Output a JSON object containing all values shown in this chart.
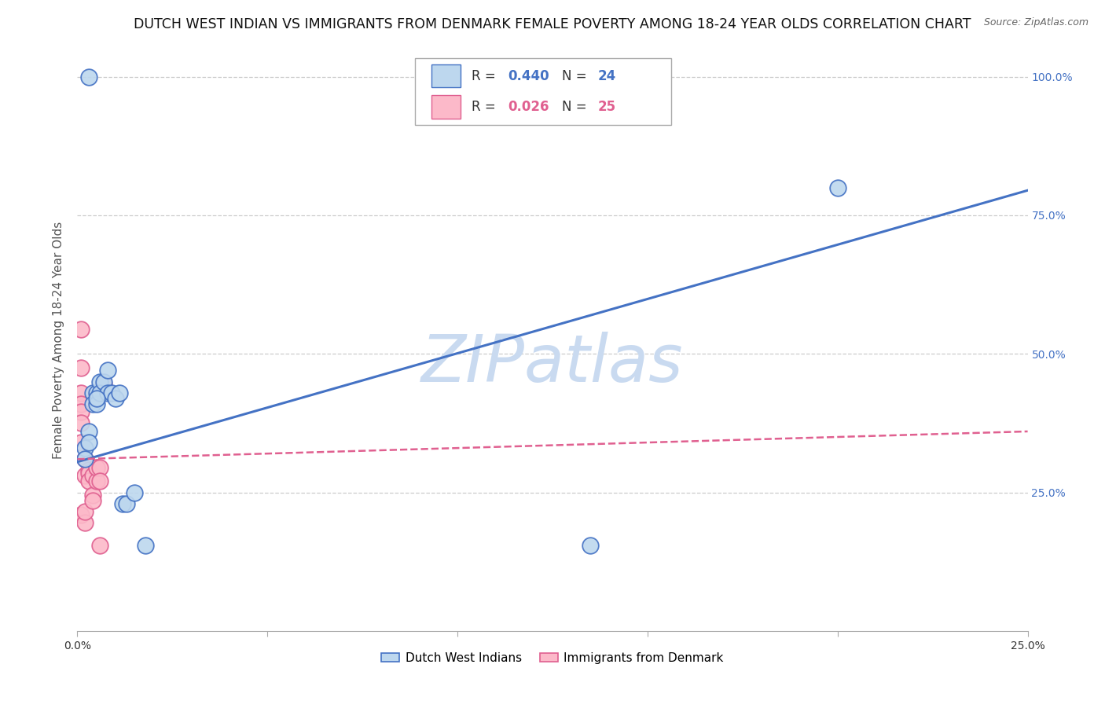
{
  "title": "DUTCH WEST INDIAN VS IMMIGRANTS FROM DENMARK FEMALE POVERTY AMONG 18-24 YEAR OLDS CORRELATION CHART",
  "source": "Source: ZipAtlas.com",
  "ylabel": "Female Poverty Among 18-24 Year Olds",
  "xlim": [
    0.0,
    0.25
  ],
  "ylim": [
    0.0,
    1.05
  ],
  "blue_R": 0.44,
  "blue_N": 24,
  "pink_R": 0.026,
  "pink_N": 25,
  "blue_scatter_x": [
    0.002,
    0.002,
    0.003,
    0.003,
    0.004,
    0.004,
    0.005,
    0.005,
    0.006,
    0.006,
    0.007,
    0.008,
    0.008,
    0.009,
    0.01,
    0.011,
    0.012,
    0.013,
    0.015,
    0.018,
    0.135,
    0.2,
    0.003,
    0.005
  ],
  "blue_scatter_y": [
    0.33,
    0.31,
    0.36,
    0.34,
    0.43,
    0.41,
    0.43,
    0.41,
    0.45,
    0.43,
    0.45,
    0.47,
    0.43,
    0.43,
    0.42,
    0.43,
    0.23,
    0.23,
    0.25,
    0.155,
    0.155,
    0.8,
    1.0,
    0.42
  ],
  "pink_scatter_x": [
    0.001,
    0.001,
    0.001,
    0.001,
    0.001,
    0.001,
    0.002,
    0.002,
    0.002,
    0.002,
    0.003,
    0.003,
    0.003,
    0.004,
    0.004,
    0.004,
    0.005,
    0.005,
    0.005,
    0.006,
    0.006,
    0.006,
    0.007,
    0.001,
    0.001
  ],
  "pink_scatter_y": [
    0.43,
    0.41,
    0.395,
    0.375,
    0.34,
    0.21,
    0.195,
    0.215,
    0.28,
    0.31,
    0.29,
    0.285,
    0.27,
    0.245,
    0.235,
    0.28,
    0.295,
    0.27,
    0.295,
    0.155,
    0.295,
    0.27,
    0.445,
    0.545,
    0.475
  ],
  "blue_line_color": "#4472C4",
  "pink_line_color": "#E06090",
  "blue_scatter_facecolor": "#BDD7EE",
  "blue_scatter_edgecolor": "#4472C4",
  "pink_scatter_facecolor": "#FCB9C9",
  "pink_scatter_edgecolor": "#E06090",
  "background_color": "#ffffff",
  "grid_color": "#cccccc",
  "watermark_text": "ZIPatlas",
  "watermark_color": "#C9DAF0",
  "legend_label_blue": "Dutch West Indians",
  "legend_label_pink": "Immigrants from Denmark",
  "title_fontsize": 12.5,
  "source_fontsize": 9,
  "ylabel_fontsize": 11,
  "tick_fontsize": 10,
  "right_tick_color": "#4472C4",
  "blue_trend_x0": 0.0,
  "blue_trend_y0": 0.305,
  "blue_trend_x1": 0.25,
  "blue_trend_y1": 0.795,
  "pink_trend_x0": 0.0,
  "pink_trend_y0": 0.31,
  "pink_trend_x1": 0.25,
  "pink_trend_y1": 0.36
}
